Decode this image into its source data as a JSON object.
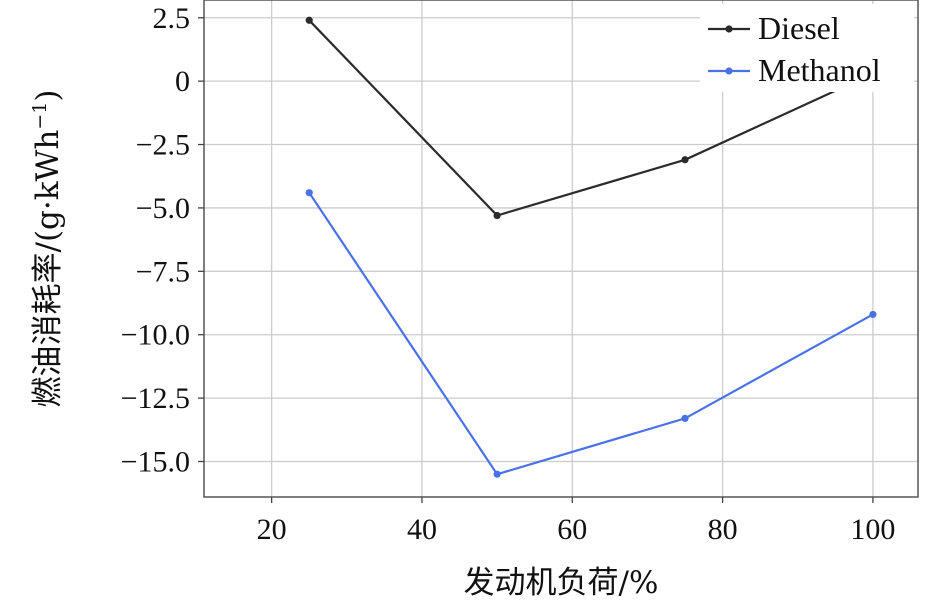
{
  "chart_data": {
    "type": "line",
    "xlabel": "发动机负荷/%",
    "ylabel_main": "燃油消耗率/(g·kWh",
    "ylabel_sup": "−1",
    "ylabel_close": ")",
    "xlim": [
      11,
      106
    ],
    "ylim": [
      -16.4,
      3.2
    ],
    "xticks": [
      20,
      40,
      60,
      80,
      100
    ],
    "xtick_labels": [
      "20",
      "40",
      "60",
      "80",
      "100"
    ],
    "yticks": [
      2.5,
      0,
      -2.5,
      -5,
      -7.5,
      -10,
      -12.5,
      -15
    ],
    "ytick_labels": [
      "2.5",
      "0",
      "−2.5",
      "−5.0",
      "−7.5",
      "−10.0",
      "−12.5",
      "−15.0"
    ],
    "grid": true,
    "legend_position": "top-right",
    "series": [
      {
        "name": "Diesel",
        "color": "#2b2b2b",
        "x": [
          25,
          50,
          75,
          100
        ],
        "y": [
          2.4,
          -5.3,
          -3.1,
          0.3
        ]
      },
      {
        "name": "Methanol",
        "color": "#4a72e8",
        "x": [
          25,
          50,
          75,
          100
        ],
        "y": [
          -4.4,
          -15.5,
          -13.3,
          -9.2
        ]
      }
    ]
  }
}
